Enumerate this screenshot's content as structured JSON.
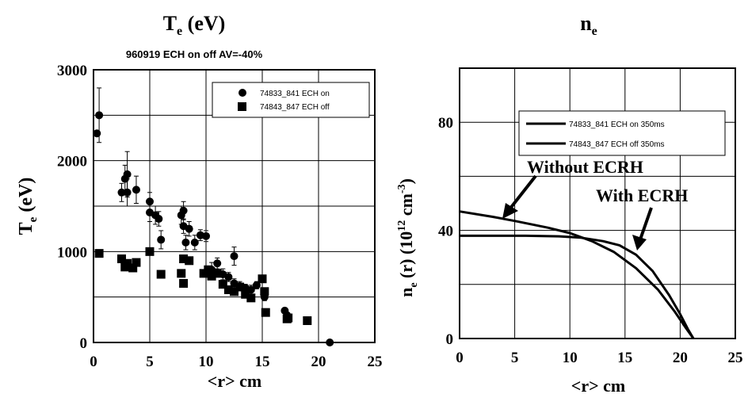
{
  "chart_data": [
    {
      "type": "scatter",
      "title": "T_e (eV)",
      "title_main": "T",
      "title_sub": "e",
      "title_unit": "(eV)",
      "subtitle": "960919 ECH on off AV=-40%",
      "xlabel": "<r> cm",
      "ylabel_main": "T",
      "ylabel_sub": "e",
      "ylabel_unit": "(eV)",
      "xlim": [
        0,
        25
      ],
      "ylim": [
        0,
        3000
      ],
      "xticks": [
        "0",
        "5",
        "10",
        "15",
        "20",
        "25"
      ],
      "yticks": [
        "0",
        "1000",
        "2000",
        "3000"
      ],
      "grid": true,
      "legend": "top-right",
      "series": [
        {
          "name": "74833_841 ECH on",
          "marker": "circle",
          "points": [
            [
              0.3,
              2300,
              0
            ],
            [
              0.5,
              2500,
              300
            ],
            [
              2.5,
              1650,
              100
            ],
            [
              2.8,
              1800,
              150
            ],
            [
              3.0,
              1850,
              250
            ],
            [
              3.0,
              1650,
              150
            ],
            [
              3.8,
              1680,
              150
            ],
            [
              5.0,
              1550,
              100
            ],
            [
              5.0,
              1430,
              100
            ],
            [
              5.5,
              1400,
              100
            ],
            [
              5.8,
              1360,
              80
            ],
            [
              6.0,
              1130,
              100
            ],
            [
              7.8,
              1400,
              100
            ],
            [
              8.0,
              1450,
              100
            ],
            [
              8.0,
              1280,
              80
            ],
            [
              8.2,
              1100,
              80
            ],
            [
              8.5,
              1250,
              80
            ],
            [
              9.0,
              1100,
              80
            ],
            [
              9.5,
              1180,
              60
            ],
            [
              10.0,
              1170,
              60
            ],
            [
              10.5,
              800,
              80
            ],
            [
              11.0,
              870,
              60
            ],
            [
              11.5,
              750,
              60
            ],
            [
              12.0,
              720,
              50
            ],
            [
              12.5,
              950,
              100
            ],
            [
              12.5,
              650,
              50
            ],
            [
              13.0,
              620,
              50
            ],
            [
              13.5,
              600,
              40
            ],
            [
              14.0,
              580,
              50
            ],
            [
              14.5,
              630,
              40
            ],
            [
              15.0,
              700,
              40
            ],
            [
              15.2,
              500,
              40
            ],
            [
              17.0,
              350,
              30
            ],
            [
              17.2,
              300,
              30
            ],
            [
              21.0,
              0,
              0
            ]
          ]
        },
        {
          "name": "74843_847 ECH off",
          "marker": "square",
          "points": [
            [
              0.5,
              980
            ],
            [
              2.5,
              920
            ],
            [
              2.8,
              830
            ],
            [
              3.0,
              870
            ],
            [
              3.5,
              820
            ],
            [
              3.8,
              880
            ],
            [
              5.0,
              1000
            ],
            [
              6.0,
              750
            ],
            [
              7.8,
              760
            ],
            [
              8.0,
              920
            ],
            [
              8.0,
              650
            ],
            [
              8.5,
              900
            ],
            [
              9.8,
              760
            ],
            [
              10.2,
              800
            ],
            [
              10.5,
              730
            ],
            [
              11.0,
              760
            ],
            [
              11.5,
              640
            ],
            [
              12.0,
              580
            ],
            [
              12.5,
              560
            ],
            [
              13.0,
              610
            ],
            [
              13.5,
              530
            ],
            [
              14.0,
              490
            ],
            [
              15.0,
              700
            ],
            [
              15.2,
              560
            ],
            [
              15.3,
              330
            ],
            [
              17.2,
              260
            ],
            [
              17.3,
              270
            ],
            [
              19.0,
              240
            ]
          ]
        }
      ]
    },
    {
      "type": "line",
      "title": "n_e",
      "title_main": "n",
      "title_sub": "e",
      "xlabel": "<r> cm",
      "ylabel_main": "n",
      "ylabel_sub": "e",
      "ylabel_rest": " (r) (10",
      "ylabel_exp": "12",
      "ylabel_unit": " cm",
      "ylabel_exp2": "-3",
      "ylabel_close": ")",
      "xlim": [
        0,
        25
      ],
      "ylim": [
        0,
        100
      ],
      "xticks": [
        "0",
        "5",
        "10",
        "15",
        "20",
        "25"
      ],
      "yticks": [
        "0",
        "40",
        "80"
      ],
      "grid": true,
      "legend": "top",
      "annotations": [
        "Without ECRH",
        "With ECRH"
      ],
      "series": [
        {
          "name": "74833_841 ECH on 350ms",
          "points": [
            [
              0,
              38
            ],
            [
              3,
              38
            ],
            [
              6,
              38
            ],
            [
              9,
              37.8
            ],
            [
              11,
              37.3
            ],
            [
              13,
              36
            ],
            [
              14.5,
              34.5
            ],
            [
              16,
              31
            ],
            [
              17.5,
              25
            ],
            [
              19,
              16
            ],
            [
              20,
              9
            ],
            [
              20.7,
              3.5
            ],
            [
              21.2,
              0
            ]
          ]
        },
        {
          "name": "74843_847 ECH off 350ms",
          "points": [
            [
              0,
              47
            ],
            [
              3,
              45
            ],
            [
              5,
              43.5
            ],
            [
              8,
              41
            ],
            [
              10,
              39
            ],
            [
              12,
              36
            ],
            [
              14,
              32
            ],
            [
              16,
              26
            ],
            [
              18,
              18
            ],
            [
              19.5,
              10
            ],
            [
              20.5,
              4
            ],
            [
              21.2,
              0
            ]
          ]
        }
      ]
    }
  ]
}
